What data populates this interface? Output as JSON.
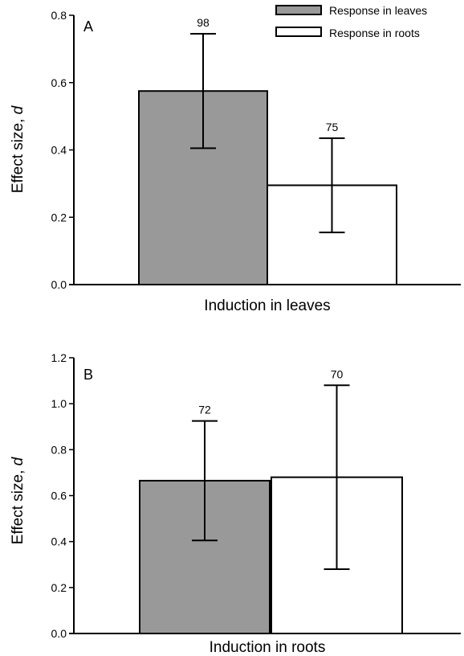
{
  "legend": [
    {
      "label": "Response in leaves",
      "color": "#999999"
    },
    {
      "label": "Response in roots",
      "color": "#ffffff"
    }
  ],
  "chart_data": [
    {
      "type": "bar",
      "panel": "A",
      "xlabel": "Induction in leaves",
      "ylabel_main": "Effect size, ",
      "ylabel_italic": "d",
      "ylim": [
        0,
        0.8
      ],
      "yticks": [
        "0.0",
        "0.2",
        "0.4",
        "0.6",
        "0.8"
      ],
      "grid": false,
      "legend_position": "top-right",
      "series": [
        {
          "name": "Response in leaves",
          "value": 0.575,
          "err_low": 0.405,
          "err_high": 0.745,
          "n": "98",
          "color": "#999999"
        },
        {
          "name": "Response in roots",
          "value": 0.295,
          "err_low": 0.155,
          "err_high": 0.435,
          "n": "75",
          "color": "#ffffff"
        }
      ]
    },
    {
      "type": "bar",
      "panel": "B",
      "xlabel": "Induction in roots",
      "ylabel_main": "Effect size, ",
      "ylabel_italic": "d",
      "ylim": [
        0,
        1.2
      ],
      "yticks": [
        "0.0",
        "0.2",
        "0.4",
        "0.6",
        "0.8",
        "1.0",
        "1.2"
      ],
      "grid": false,
      "series": [
        {
          "name": "Response in leaves",
          "value": 0.665,
          "err_low": 0.405,
          "err_high": 0.925,
          "n": "72",
          "color": "#999999"
        },
        {
          "name": "Response in roots",
          "value": 0.68,
          "err_low": 0.28,
          "err_high": 1.08,
          "n": "70",
          "color": "#ffffff"
        }
      ]
    }
  ]
}
